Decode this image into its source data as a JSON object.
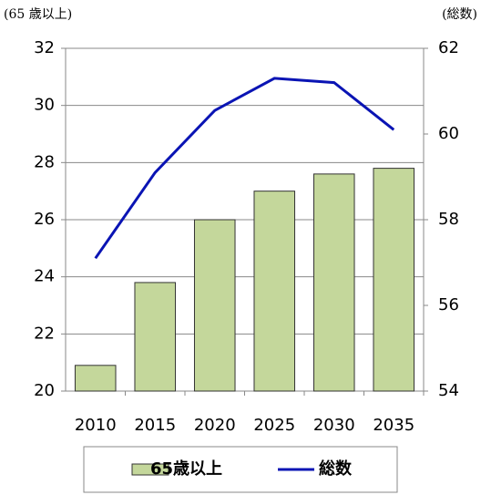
{
  "chart_data": {
    "type": "bar",
    "y_label": "(65 歳以上)",
    "y2_label": "(総数)",
    "categories": [
      "2010",
      "2015",
      "2020",
      "2025",
      "2030",
      "2035"
    ],
    "series": [
      {
        "name": "65歳以上",
        "type": "bar",
        "color": "#c4d79b",
        "values": [
          20.9,
          23.8,
          26.0,
          27.0,
          27.6,
          27.8
        ]
      },
      {
        "name": "総数",
        "type": "line",
        "axis": "y2",
        "color": "#0a14b4",
        "values": [
          57.1,
          59.1,
          60.55,
          61.3,
          61.2,
          60.1
        ]
      }
    ],
    "ylim": [
      20,
      32
    ],
    "yticks": [
      20,
      22,
      24,
      26,
      28,
      30,
      32
    ],
    "y2lim": [
      54,
      62
    ],
    "y2ticks": [
      54,
      56,
      58,
      60,
      62
    ],
    "grid": true,
    "legend": "bottom"
  }
}
